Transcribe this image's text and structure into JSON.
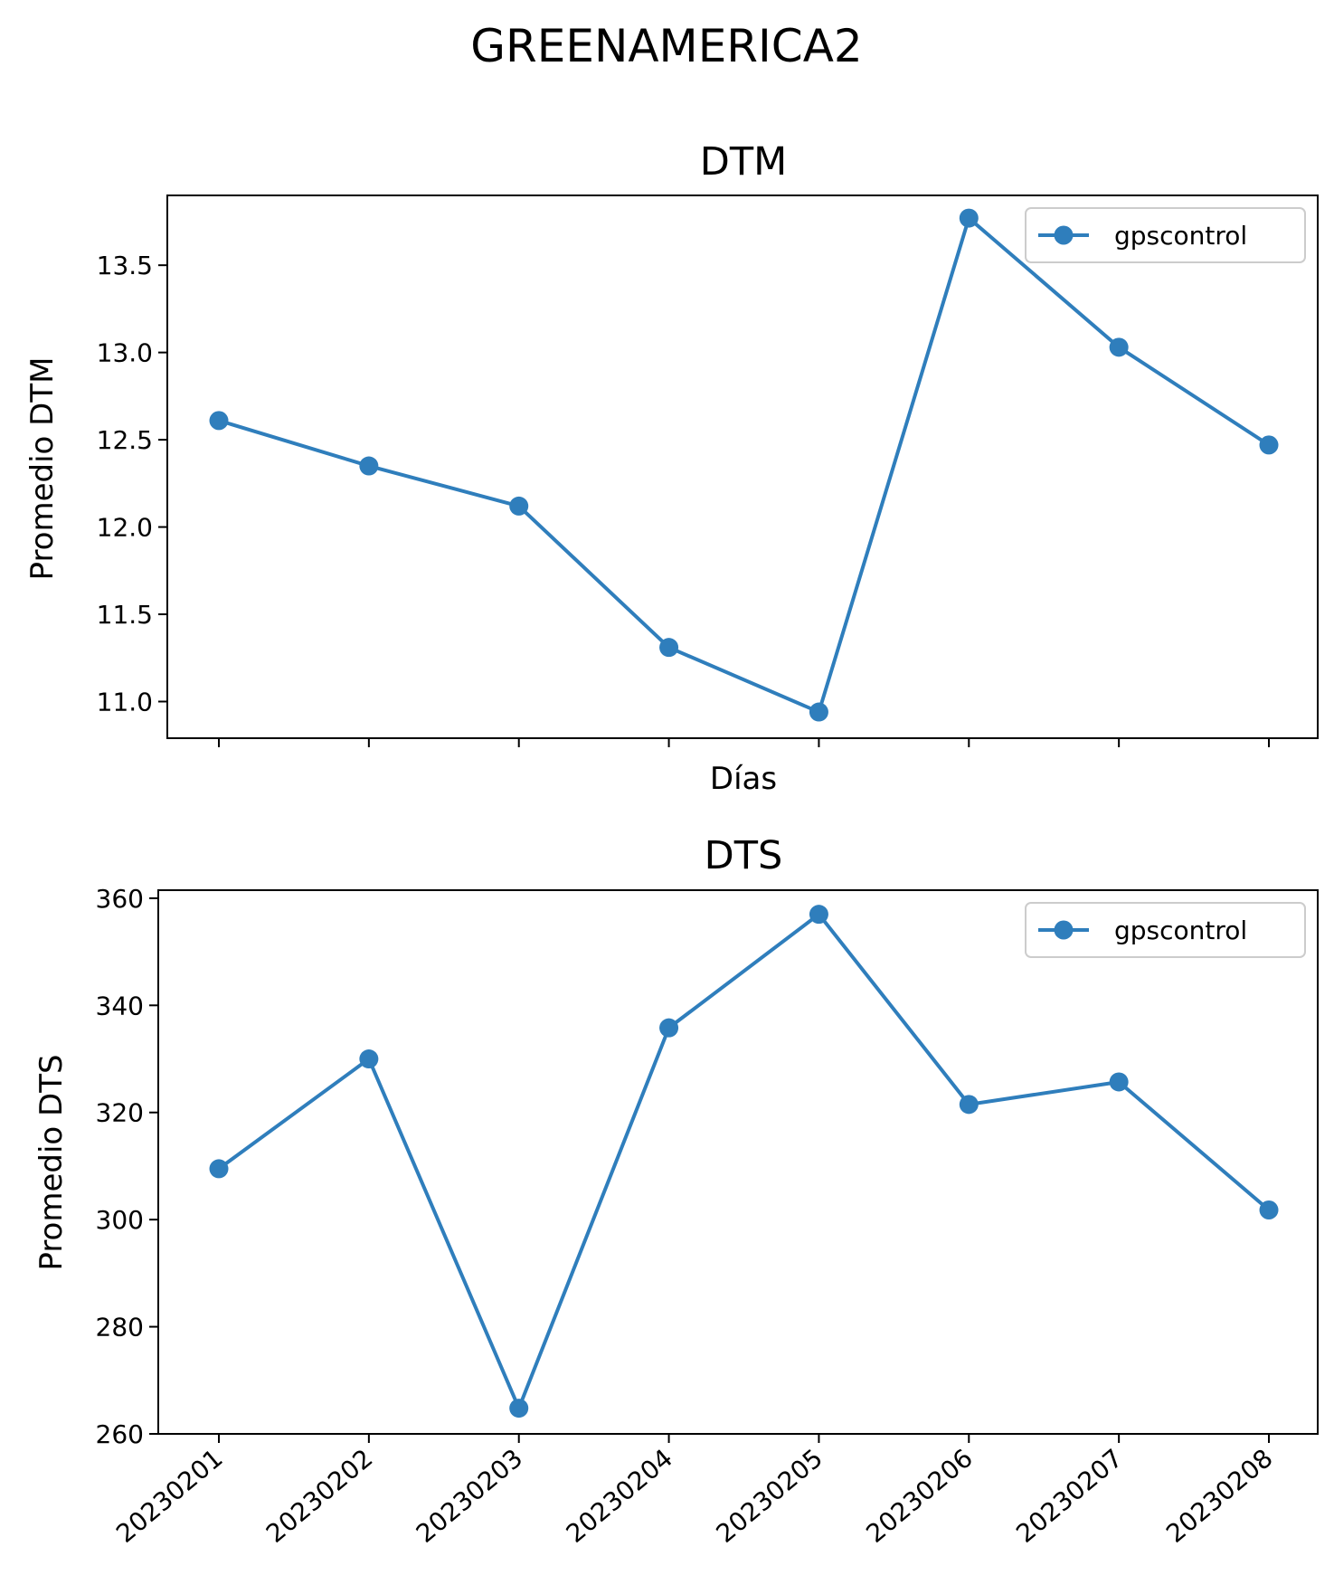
{
  "figure": {
    "title": "GREENAMERICA2"
  },
  "chart_data": [
    {
      "type": "line",
      "title": "DTM",
      "xlabel": "Días",
      "ylabel": "Promedio DTM",
      "categories": [
        "20230201",
        "20230202",
        "20230203",
        "20230204",
        "20230205",
        "20230206",
        "20230207",
        "20230208"
      ],
      "show_x_tick_labels": false,
      "yticks": [
        "11.0",
        "11.5",
        "12.0",
        "12.5",
        "13.0",
        "13.5"
      ],
      "ylim": [
        10.79,
        13.9
      ],
      "series": [
        {
          "name": "gpscontrol",
          "color": "#2f7ebc",
          "marker": "circle",
          "values": [
            12.61,
            12.35,
            12.12,
            11.31,
            10.94,
            13.77,
            13.03,
            12.47
          ]
        }
      ],
      "legend": {
        "position": "upper right",
        "entries": [
          "gpscontrol"
        ]
      },
      "grid": false
    },
    {
      "type": "line",
      "title": "DTS",
      "xlabel": "",
      "ylabel": "Promedio DTS",
      "categories": [
        "20230201",
        "20230202",
        "20230203",
        "20230204",
        "20230205",
        "20230206",
        "20230207",
        "20230208"
      ],
      "show_x_tick_labels": true,
      "yticks": [
        "260",
        "280",
        "300",
        "320",
        "340",
        "360"
      ],
      "ylim": [
        260,
        361.5
      ],
      "series": [
        {
          "name": "gpscontrol",
          "color": "#2f7ebc",
          "marker": "circle",
          "values": [
            309.5,
            330.0,
            264.8,
            335.8,
            357.0,
            321.5,
            325.7,
            301.8
          ]
        }
      ],
      "legend": {
        "position": "upper right",
        "entries": [
          "gpscontrol"
        ]
      },
      "grid": false
    }
  ]
}
